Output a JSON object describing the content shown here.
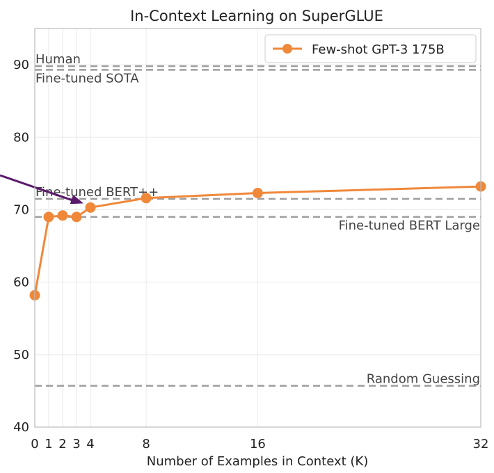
{
  "colors": {
    "series": "#F0883A",
    "reference": "#9E9E9E",
    "arrow": "#5B1A6B",
    "grid": "#EAEAEA",
    "frame": "#BBBBBB"
  },
  "chart_data": {
    "type": "line",
    "title": "In-Context Learning on SuperGLUE",
    "xlabel": "Number of Examples in Context (K)",
    "ylabel": "",
    "xlim": [
      0,
      32
    ],
    "ylim": [
      40,
      95
    ],
    "x_scale": "piecewise (K = 0 to 4 stretched)",
    "grid": true,
    "legend_position": "top-right",
    "x_ticks": [
      "0",
      "1",
      "2",
      "3",
      "4",
      "8",
      "16",
      "32"
    ],
    "y_ticks": [
      "40",
      "50",
      "60",
      "70",
      "80",
      "90"
    ],
    "series": [
      {
        "name": "Few-shot GPT-3 175B",
        "x": [
          0,
          1,
          2,
          3,
          4,
          8,
          16,
          32
        ],
        "y": [
          58.2,
          69.0,
          69.2,
          69.0,
          70.3,
          71.6,
          72.3,
          73.2
        ]
      }
    ],
    "reference_lines": [
      {
        "label": "Human",
        "value": 89.8,
        "label_side": "left"
      },
      {
        "label": "Fine-tuned SOTA",
        "value": 89.3,
        "label_side": "left"
      },
      {
        "label": "Fine-tuned BERT++",
        "value": 71.5,
        "label_side": "left"
      },
      {
        "label": "Fine-tuned BERT Large",
        "value": 69.0,
        "label_side": "right"
      },
      {
        "label": "Random Guessing",
        "value": 45.7,
        "label_side": "right"
      }
    ],
    "annotations": [
      {
        "type": "arrow",
        "points_to_x": 4,
        "points_to_y": 70.3
      }
    ]
  }
}
